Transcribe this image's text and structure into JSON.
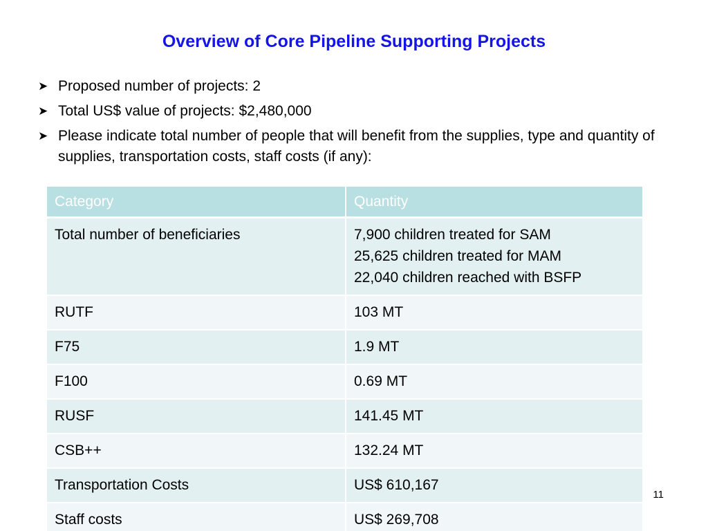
{
  "title": "Overview of Core Pipeline Supporting Projects",
  "bullets": [
    "Proposed number of projects: 2",
    "Total US$ value of projects: $2,480,000",
    "Please indicate total number of people that will benefit from the supplies, type and quantity of supplies, transportation costs, staff costs (if any):"
  ],
  "table": {
    "headers": [
      "Category",
      "Quantity"
    ],
    "rows": [
      {
        "category": "Total number of beneficiaries",
        "quantity_lines": [
          "7,900 children treated for SAM",
          "25,625 children treated for MAM",
          "22,040 children reached with BSFP"
        ]
      },
      {
        "category": "RUTF",
        "quantity_lines": [
          "103 MT"
        ]
      },
      {
        "category": "F75",
        "quantity_lines": [
          "1.9 MT"
        ]
      },
      {
        "category": "F100",
        "quantity_lines": [
          "0.69 MT"
        ]
      },
      {
        "category": "RUSF",
        "quantity_lines": [
          "141.45 MT"
        ]
      },
      {
        "category": "CSB++",
        "quantity_lines": [
          "132.24 MT"
        ]
      },
      {
        "category": "Transportation Costs",
        "quantity_lines": [
          "US$ 610,167"
        ]
      },
      {
        "category": "Staff costs",
        "quantity_lines": [
          "US$ 269,708"
        ]
      }
    ]
  },
  "page_number": "11",
  "colors": {
    "title": "#1414e6",
    "header_bg": "#b8dfe1",
    "row_odd_bg": "#e3f0f1",
    "row_even_bg": "#f1f7f8"
  },
  "icons": {
    "bullet": "arrowhead-bullet-icon"
  }
}
